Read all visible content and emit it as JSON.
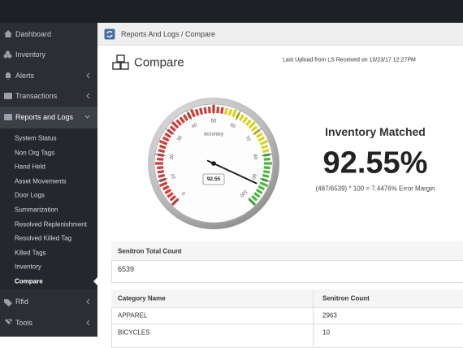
{
  "sidebar": {
    "menu": [
      "Dashboard",
      "Inventory",
      "Alerts",
      "Transactions",
      "Reports and Logs"
    ],
    "submenu": [
      "System Status",
      "Non Org Tags",
      "Hand Held",
      "Asset Movements",
      "Door Logs",
      "Summarization",
      "Resolved Replenishment",
      "Resolved Killed Tag",
      "Killed Tags",
      "Inventory",
      "Compare"
    ],
    "menu_after": [
      "Rfid",
      "Tools"
    ]
  },
  "breadcrumb": "Reports And Logs  /  Compare",
  "header": {
    "title": "Compare",
    "last_upload": "Last Upload from LS Received on 10/23/17 12:27PM"
  },
  "gauge": {
    "label": "accuracy",
    "value": 92.55,
    "ticks": [
      0,
      10,
      20,
      30,
      40,
      50,
      60,
      70,
      80,
      90,
      100
    ]
  },
  "summary": {
    "title": "Inventory Matched",
    "percent": "92.55%",
    "formula": "(487/6539) * 100 = 7.4476% Error Margin"
  },
  "total": {
    "label": "Senitron Total Count",
    "value": 6539
  },
  "table": {
    "columns": [
      "Category Name",
      "Senitron Count"
    ],
    "rows": [
      [
        "APPAREL",
        2963
      ],
      [
        "BICYCLES",
        10
      ]
    ]
  }
}
